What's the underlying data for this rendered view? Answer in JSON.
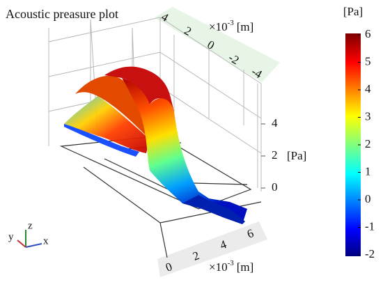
{
  "title": "Acoustic preasure plot",
  "colorbar": {
    "unit": "[Pa]",
    "ticks": [
      6,
      5,
      4,
      3,
      2,
      1,
      0,
      -1,
      -2
    ]
  },
  "y_axis": {
    "ticks": [
      4,
      2,
      0,
      -2,
      -4
    ],
    "scale": "×10",
    "exponent": "-3",
    "unit": "[m]"
  },
  "x_axis": {
    "ticks": [
      0,
      2,
      4,
      6
    ],
    "scale": "×10",
    "exponent": "-3",
    "unit": "[m]"
  },
  "z_axis": {
    "ticks": [
      4,
      2,
      0
    ],
    "unit": "[Pa]"
  },
  "triad": {
    "x": "x",
    "y": "y",
    "z": "z"
  }
}
